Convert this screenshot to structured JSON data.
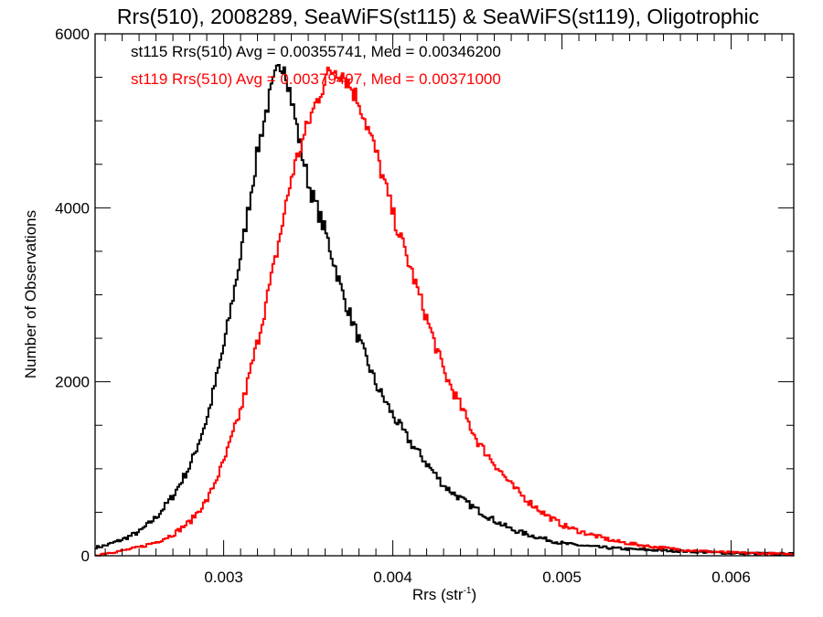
{
  "chart_data": {
    "type": "line",
    "subtype": "step-histogram",
    "title": "Rrs(510), 2008289, SeaWiFS(st115) & SeaWiFS(st119), Oligotrophic",
    "xlabel": "Rrs (str",
    "xlabel_superscript": "-1",
    "xlabel_suffix": ")",
    "ylabel": "Number of Observations",
    "xlim": [
      0.00224,
      0.00637
    ],
    "ylim": [
      0,
      6000
    ],
    "x_ticks": [
      0.003,
      0.004,
      0.005,
      0.006
    ],
    "x_tick_labels": [
      "0.003",
      "0.004",
      "0.005",
      "0.006"
    ],
    "x_minor_step": 0.0001,
    "y_ticks": [
      0,
      2000,
      4000,
      6000
    ],
    "y_tick_labels": [
      "0",
      "2000",
      "4000",
      "6000"
    ],
    "y_minor_step": 500,
    "grid": false,
    "annotations": [
      {
        "text": "st115 Rrs(510) Avg = 0.00355741, Med = 0.00346200",
        "color": "#000000"
      },
      {
        "text": "st119 Rrs(510) Avg = 0.00379497, Med = 0.00371000",
        "color": "#ff0000"
      }
    ],
    "series": [
      {
        "name": "st115",
        "color": "#000000",
        "x": [
          0.00225,
          0.0023,
          0.0024,
          0.0025,
          0.0026,
          0.0027,
          0.0028,
          0.0029,
          0.003,
          0.0031,
          0.0032,
          0.00325,
          0.0033,
          0.00335,
          0.0034,
          0.00345,
          0.0035,
          0.0036,
          0.0037,
          0.0038,
          0.0039,
          0.004,
          0.0041,
          0.0042,
          0.0043,
          0.0044,
          0.0045,
          0.0046,
          0.0047,
          0.0048,
          0.0049,
          0.005,
          0.0052,
          0.0054,
          0.0056,
          0.0058,
          0.006,
          0.0062,
          0.00635
        ],
        "values": [
          100,
          120,
          190,
          280,
          450,
          700,
          1050,
          1600,
          2450,
          3500,
          4700,
          5150,
          5500,
          5700,
          5200,
          4700,
          4250,
          3700,
          3000,
          2450,
          1950,
          1600,
          1300,
          1050,
          800,
          650,
          520,
          400,
          300,
          240,
          190,
          140,
          100,
          75,
          60,
          45,
          30,
          25,
          20
        ]
      },
      {
        "name": "st119",
        "color": "#ff0000",
        "x": [
          0.00225,
          0.0023,
          0.0024,
          0.0025,
          0.0026,
          0.0027,
          0.0028,
          0.0029,
          0.003,
          0.0031,
          0.0032,
          0.0033,
          0.0034,
          0.0035,
          0.0036,
          0.00365,
          0.0037,
          0.0038,
          0.0039,
          0.004,
          0.0041,
          0.0042,
          0.0043,
          0.0044,
          0.0045,
          0.0046,
          0.0047,
          0.0048,
          0.0049,
          0.005,
          0.0051,
          0.0053,
          0.0055,
          0.0057,
          0.0059,
          0.006,
          0.0062,
          0.00635
        ],
        "values": [
          10,
          30,
          60,
          100,
          160,
          250,
          400,
          650,
          1100,
          1700,
          2500,
          3400,
          4400,
          5000,
          5500,
          5600,
          5550,
          5200,
          4600,
          3900,
          3300,
          2700,
          2100,
          1700,
          1300,
          1050,
          800,
          620,
          470,
          350,
          280,
          170,
          110,
          70,
          45,
          35,
          25,
          15
        ]
      }
    ]
  }
}
